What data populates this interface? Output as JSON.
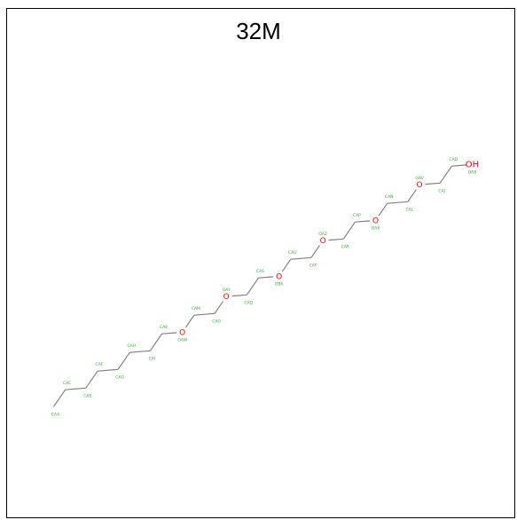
{
  "title": "32M",
  "colors": {
    "bond": "#808080",
    "oxygen": "#ff0000",
    "atom_label": "#33aa33"
  },
  "atoms": [
    {
      "name": "CAA",
      "element": "C"
    },
    {
      "name": "CAC",
      "element": "C"
    },
    {
      "name": "CAE",
      "element": "C"
    },
    {
      "name": "CAF",
      "element": "C"
    },
    {
      "name": "CAG",
      "element": "C"
    },
    {
      "name": "CAH",
      "element": "C"
    },
    {
      "name": "CAI",
      "element": "C"
    },
    {
      "name": "CAK",
      "element": "C"
    },
    {
      "name": "OAW",
      "element": "O"
    },
    {
      "name": "CAM",
      "element": "C"
    },
    {
      "name": "CAO",
      "element": "C"
    },
    {
      "name": "OAY",
      "element": "O"
    },
    {
      "name": "CAQ",
      "element": "C"
    },
    {
      "name": "CAS",
      "element": "C"
    },
    {
      "name": "OBA",
      "element": "O"
    },
    {
      "name": "CAU",
      "element": "C"
    },
    {
      "name": "CAT",
      "element": "C"
    },
    {
      "name": "OAZ",
      "element": "O"
    },
    {
      "name": "CAR",
      "element": "C"
    },
    {
      "name": "CAP",
      "element": "C"
    },
    {
      "name": "OAX",
      "element": "O"
    },
    {
      "name": "CAN",
      "element": "C"
    },
    {
      "name": "CAL",
      "element": "C"
    },
    {
      "name": "OAV",
      "element": "O"
    },
    {
      "name": "CAJ",
      "element": "C"
    },
    {
      "name": "CAD",
      "element": "C"
    },
    {
      "name": "OAB",
      "element": "O",
      "symbol": "OH"
    }
  ]
}
